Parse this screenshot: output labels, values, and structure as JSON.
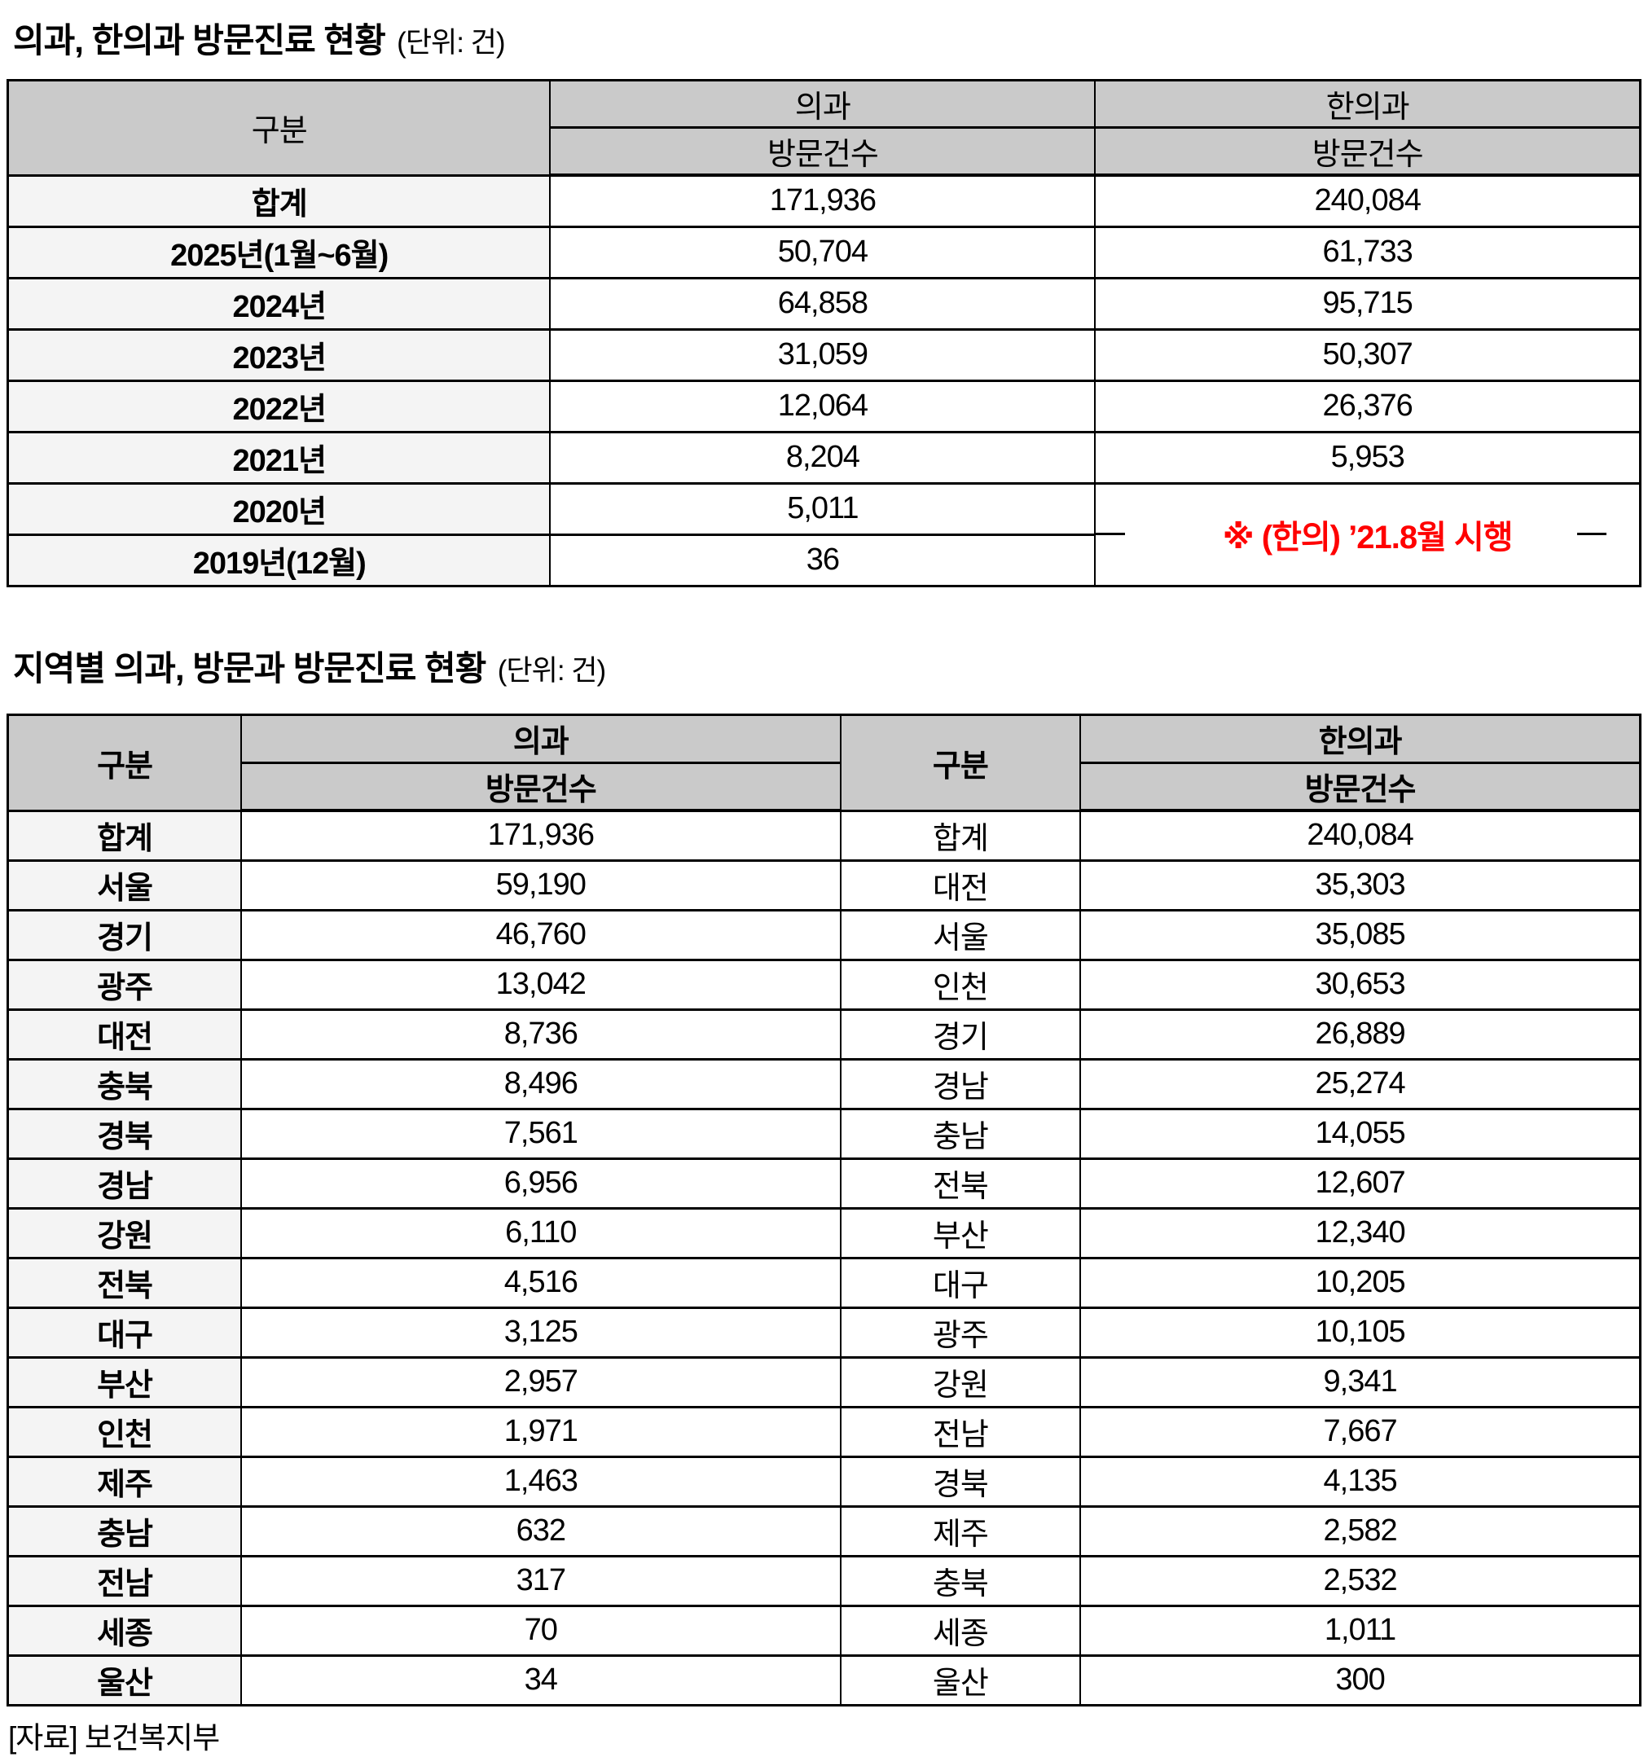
{
  "page": {
    "table1_title": "의과, 한의과 방문진료 현황",
    "table1_unit": "(단위: 건)",
    "table2_title": "지역별 의과, 방문과 방문진료 현황",
    "table2_unit": "(단위: 건)",
    "source": "[자료] 보건복지부"
  },
  "colors": {
    "header_bg": "#cacaca",
    "label_bg": "#f4f4f4",
    "note_red": "#ff0000",
    "border": "#000000"
  },
  "table1": {
    "col_group": "구분",
    "col_medical": "의과",
    "col_oriental": "한의과",
    "subheader_medical": "방문건수",
    "subheader_oriental": "방문건수",
    "note": "※ (한의) ’21.8월 시행",
    "rows": [
      {
        "label": "합계",
        "medical": "171,936",
        "oriental": "240,084"
      },
      {
        "label": "2025년(1월~6월)",
        "medical": "50,704",
        "oriental": "61,733"
      },
      {
        "label": "2024년",
        "medical": "64,858",
        "oriental": "95,715"
      },
      {
        "label": "2023년",
        "medical": "31,059",
        "oriental": "50,307"
      },
      {
        "label": "2022년",
        "medical": "12,064",
        "oriental": "26,376"
      },
      {
        "label": "2021년",
        "medical": "8,204",
        "oriental": "5,953"
      },
      {
        "label": "2020년",
        "medical": "5,011"
      },
      {
        "label": "2019년(12월)",
        "medical": "36"
      }
    ]
  },
  "table2": {
    "col_group_left": "구분",
    "col_medical": "의과",
    "col_group_right": "구분",
    "col_oriental": "한의과",
    "subheader_left": "방문건수",
    "subheader_right": "방문건수",
    "rows": [
      {
        "left_label": "합계",
        "left_value": "171,936",
        "right_label": "합계",
        "right_value": "240,084"
      },
      {
        "left_label": "서울",
        "left_value": "59,190",
        "right_label": "대전",
        "right_value": "35,303"
      },
      {
        "left_label": "경기",
        "left_value": "46,760",
        "right_label": "서울",
        "right_value": "35,085"
      },
      {
        "left_label": "광주",
        "left_value": "13,042",
        "right_label": "인천",
        "right_value": "30,653"
      },
      {
        "left_label": "대전",
        "left_value": "8,736",
        "right_label": "경기",
        "right_value": "26,889"
      },
      {
        "left_label": "충북",
        "left_value": "8,496",
        "right_label": "경남",
        "right_value": "25,274"
      },
      {
        "left_label": "경북",
        "left_value": "7,561",
        "right_label": "충남",
        "right_value": "14,055"
      },
      {
        "left_label": "경남",
        "left_value": "6,956",
        "right_label": "전북",
        "right_value": "12,607"
      },
      {
        "left_label": "강원",
        "left_value": "6,110",
        "right_label": "부산",
        "right_value": "12,340"
      },
      {
        "left_label": "전북",
        "left_value": "4,516",
        "right_label": "대구",
        "right_value": "10,205"
      },
      {
        "left_label": "대구",
        "left_value": "3,125",
        "right_label": "광주",
        "right_value": "10,105"
      },
      {
        "left_label": "부산",
        "left_value": "2,957",
        "right_label": "강원",
        "right_value": "9,341"
      },
      {
        "left_label": "인천",
        "left_value": "1,971",
        "right_label": "전남",
        "right_value": "7,667"
      },
      {
        "left_label": "제주",
        "left_value": "1,463",
        "right_label": "경북",
        "right_value": "4,135"
      },
      {
        "left_label": "충남",
        "left_value": "632",
        "right_label": "제주",
        "right_value": "2,582"
      },
      {
        "left_label": "전남",
        "left_value": "317",
        "right_label": "충북",
        "right_value": "2,532"
      },
      {
        "left_label": "세종",
        "left_value": "70",
        "right_label": "세종",
        "right_value": "1,011"
      },
      {
        "left_label": "울산",
        "left_value": "34",
        "right_label": "울산",
        "right_value": "300"
      }
    ]
  }
}
